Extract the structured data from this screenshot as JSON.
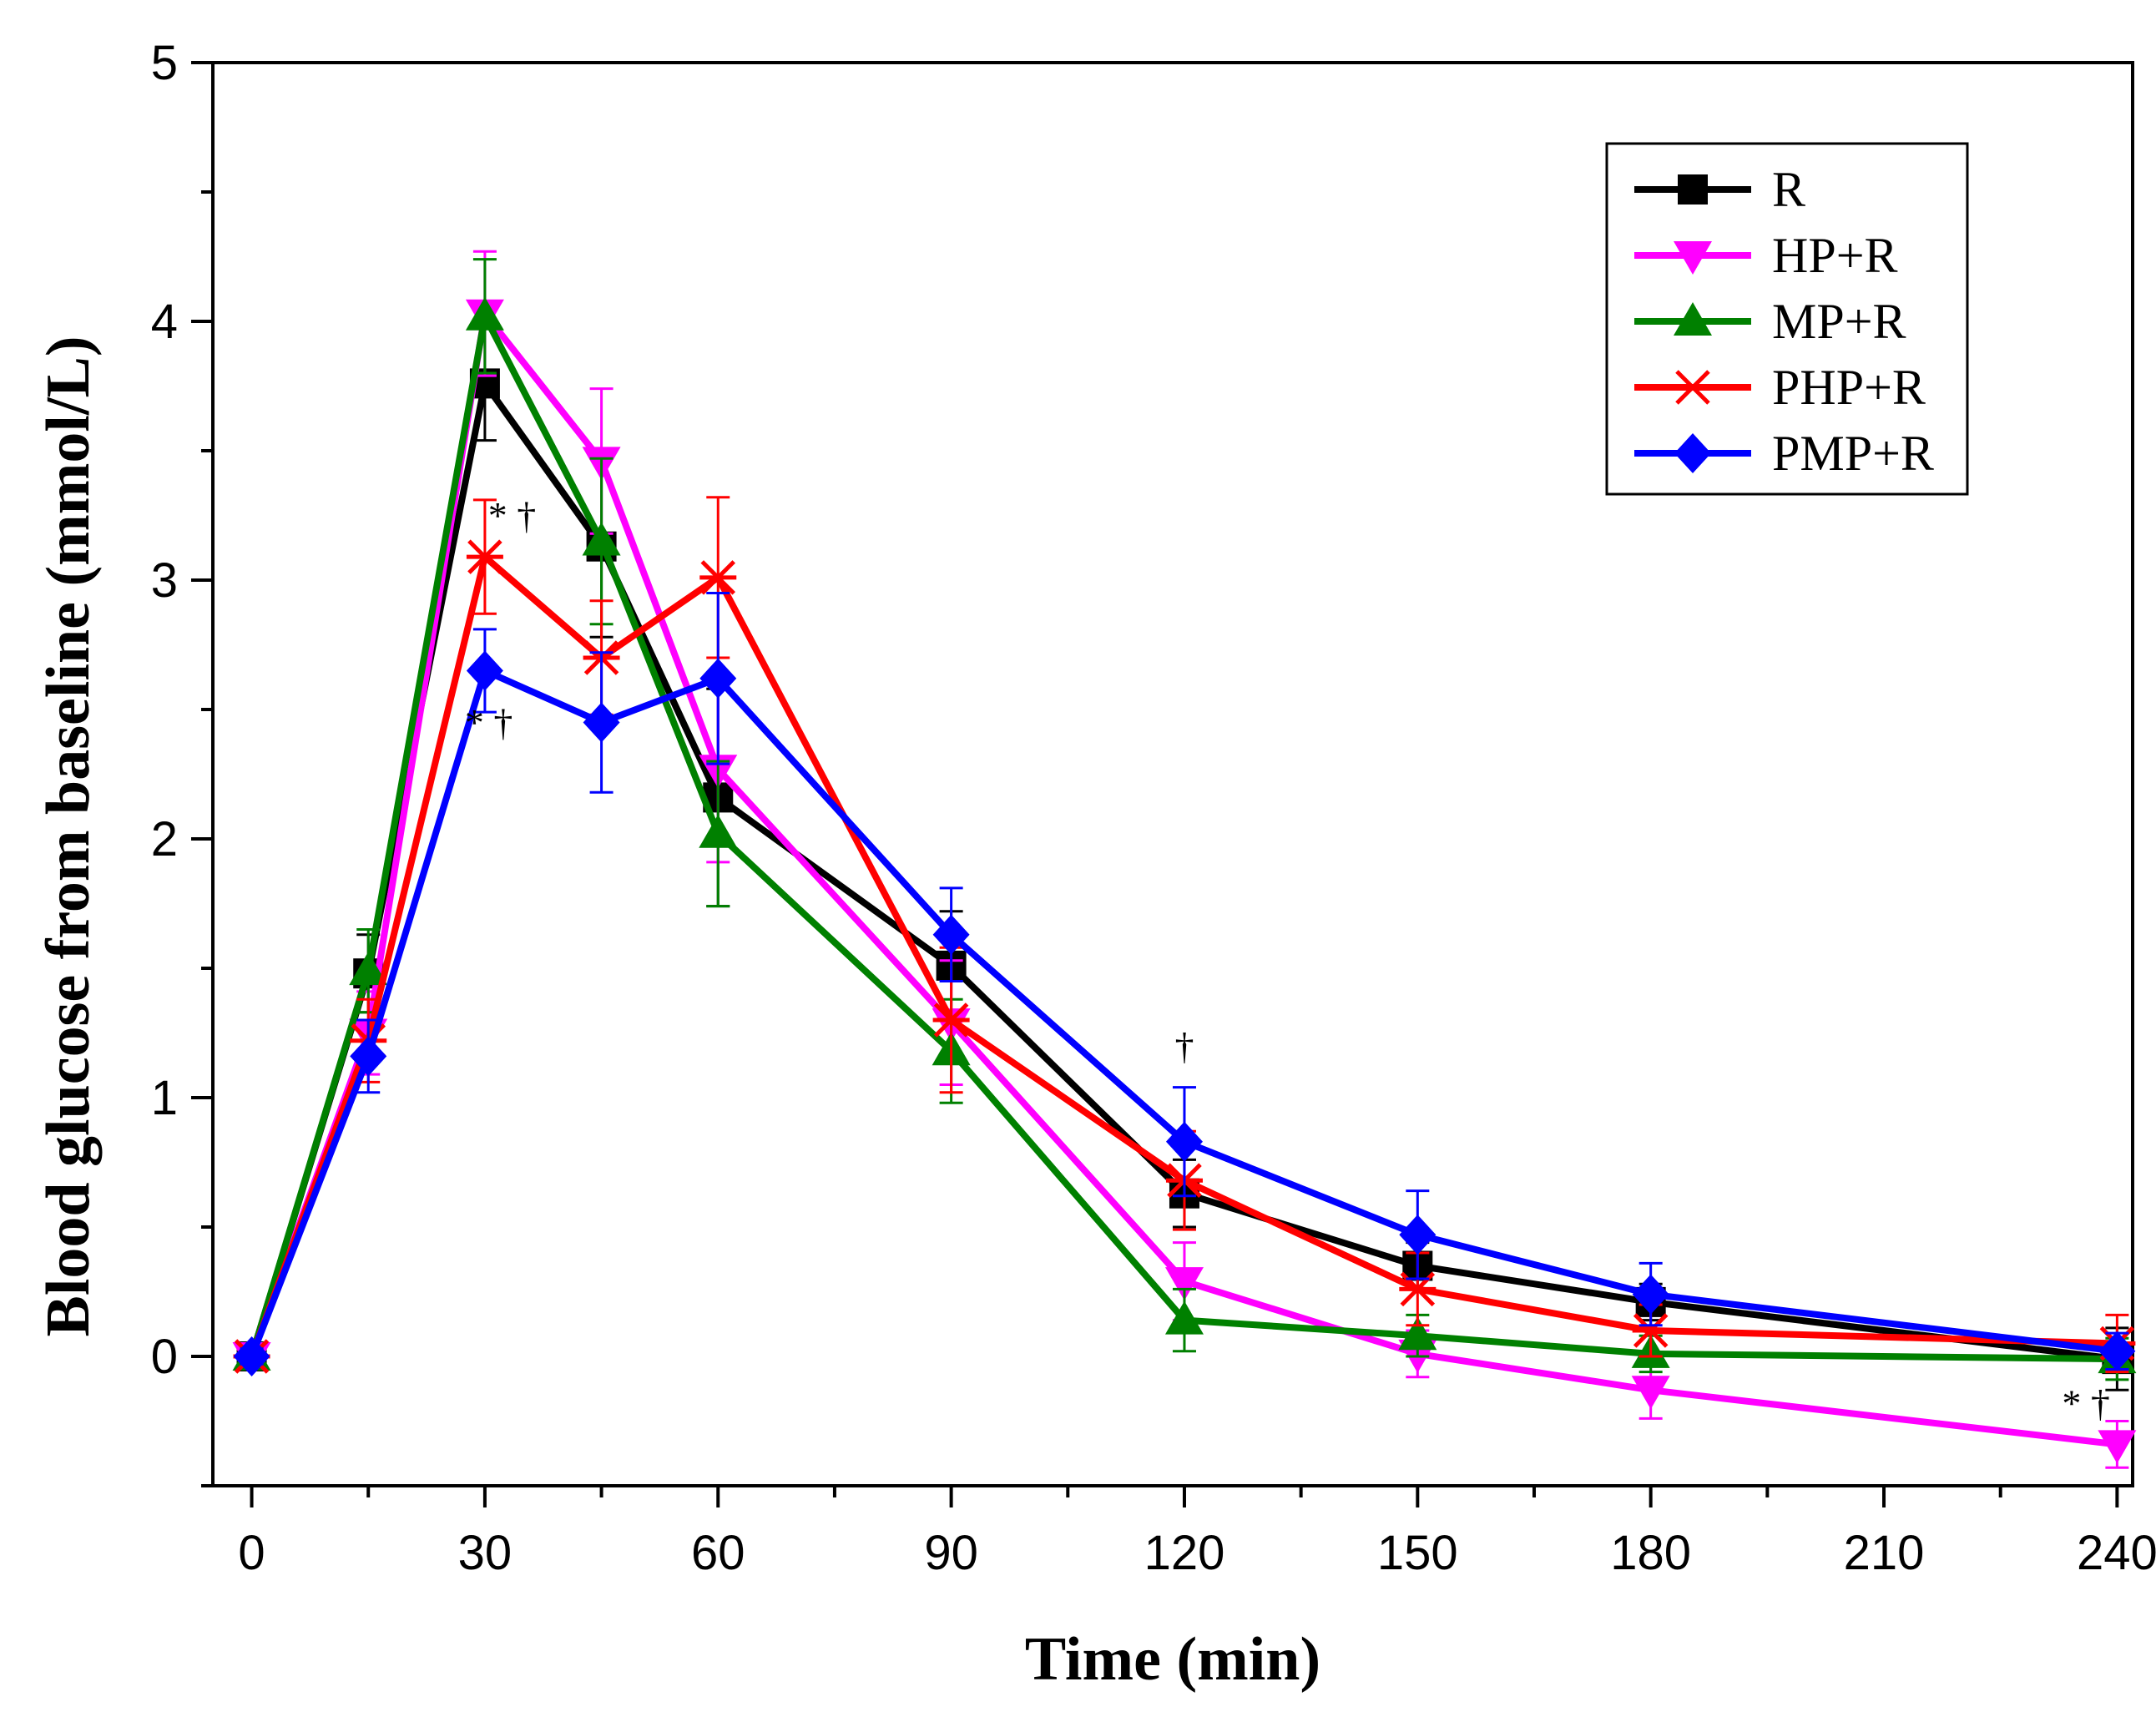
{
  "chart_data": {
    "type": "line",
    "title": "",
    "xlabel": "Time (min)",
    "ylabel": "Blood glucose from baseline (mmol/L)",
    "xlim": [
      -5,
      242
    ],
    "ylim": [
      -0.5,
      5
    ],
    "xticks": [
      0,
      30,
      60,
      90,
      120,
      150,
      180,
      210,
      240
    ],
    "xminor": [
      15,
      45,
      75,
      105,
      135,
      165,
      195,
      225
    ],
    "yticks": [
      0,
      1,
      2,
      3,
      4,
      5
    ],
    "yminor": [
      -0.5,
      0.5,
      1.5,
      2.5,
      3.5,
      4.5
    ],
    "x": [
      0,
      15,
      30,
      45,
      60,
      90,
      120,
      150,
      180,
      240
    ],
    "legend_position": "top-right",
    "series": [
      {
        "name": "R",
        "color": "#000000",
        "marker": "square",
        "values": [
          0,
          1.48,
          3.76,
          3.13,
          2.16,
          1.51,
          0.63,
          0.35,
          0.21,
          -0.01
        ],
        "errors": [
          0.03,
          0.15,
          0.22,
          0.35,
          0.42,
          0.21,
          0.13,
          0.09,
          0.07,
          0.12
        ]
      },
      {
        "name": "HP+R",
        "color": "#ff00ff",
        "marker": "triangle-down",
        "values": [
          0,
          1.25,
          4.03,
          3.46,
          2.27,
          1.29,
          0.29,
          0.01,
          -0.13,
          -0.34
        ],
        "errors": [
          0.03,
          0.16,
          0.24,
          0.28,
          0.36,
          0.24,
          0.15,
          0.09,
          0.11,
          0.09
        ]
      },
      {
        "name": "MP+R",
        "color": "#008000",
        "marker": "triangle-up",
        "values": [
          0,
          1.49,
          4.02,
          3.15,
          2.02,
          1.18,
          0.14,
          0.08,
          0.01,
          -0.01
        ],
        "errors": [
          0.03,
          0.16,
          0.22,
          0.32,
          0.28,
          0.2,
          0.12,
          0.08,
          0.07,
          0.08
        ]
      },
      {
        "name": "PHP+R",
        "color": "#ff0000",
        "marker": "asterisk",
        "values": [
          0,
          1.22,
          3.09,
          2.7,
          3.01,
          1.3,
          0.68,
          0.26,
          0.1,
          0.05
        ],
        "errors": [
          0.03,
          0.16,
          0.22,
          0.22,
          0.31,
          0.28,
          0.19,
          0.14,
          0.1,
          0.11
        ]
      },
      {
        "name": "PMP+R",
        "color": "#0000ff",
        "marker": "diamond",
        "values": [
          0,
          1.16,
          2.65,
          2.45,
          2.62,
          1.63,
          0.83,
          0.47,
          0.24,
          0.02
        ],
        "errors": [
          0.03,
          0.14,
          0.16,
          0.27,
          0.33,
          0.18,
          0.21,
          0.17,
          0.12,
          0.07
        ]
      }
    ],
    "annotations": [
      {
        "text": "* †",
        "x": 33.5,
        "y": 3.2
      },
      {
        "text": "* †",
        "x": 30.5,
        "y": 2.4
      },
      {
        "text": "†",
        "x": 120,
        "y": 1.15
      },
      {
        "text": "* †",
        "x": 236,
        "y": -0.23
      }
    ]
  }
}
